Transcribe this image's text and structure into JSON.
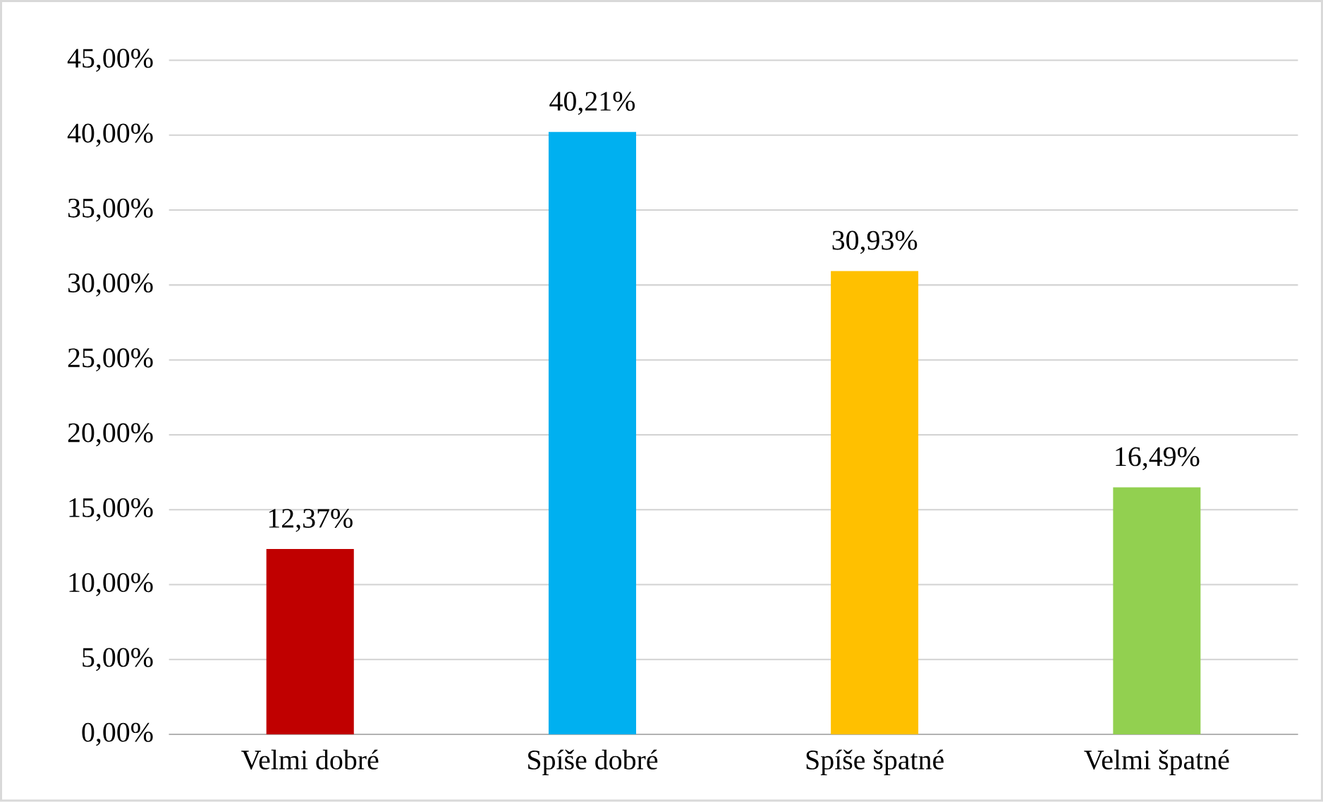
{
  "chart_data": {
    "type": "bar",
    "categories": [
      "Velmi dobré",
      "Spíše dobré",
      "Spíše špatné",
      "Velmi špatné"
    ],
    "values": [
      12.37,
      40.21,
      30.93,
      16.49
    ],
    "colors": [
      "#c00000",
      "#00b0f0",
      "#ffc000",
      "#92d050"
    ],
    "value_labels": [
      "12,37%",
      "40,21%",
      "30,93%",
      "16,49%"
    ],
    "ylim": [
      0,
      45
    ],
    "yticks": [
      {
        "value": 0,
        "label": "0,00%"
      },
      {
        "value": 5,
        "label": "5,00%"
      },
      {
        "value": 10,
        "label": "10,00%"
      },
      {
        "value": 15,
        "label": "15,00%"
      },
      {
        "value": 20,
        "label": "20,00%"
      },
      {
        "value": 25,
        "label": "25,00%"
      },
      {
        "value": 30,
        "label": "30,00%"
      },
      {
        "value": 35,
        "label": "35,00%"
      },
      {
        "value": 40,
        "label": "40,00%"
      },
      {
        "value": 45,
        "label": "45,00%"
      }
    ],
    "grid": "y"
  }
}
